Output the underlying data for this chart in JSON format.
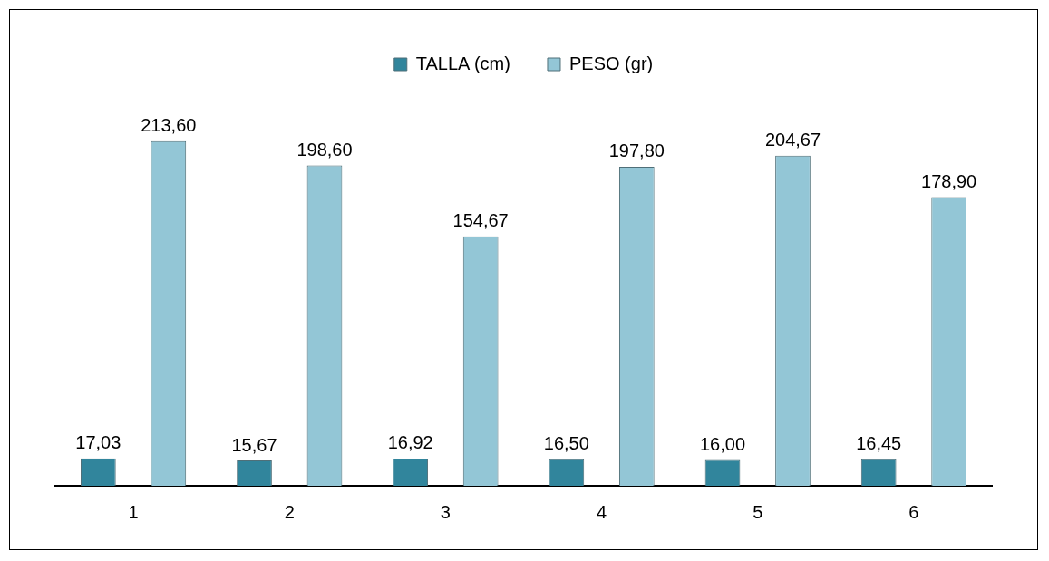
{
  "chart_data": {
    "type": "bar",
    "categories": [
      "1",
      "2",
      "3",
      "4",
      "5",
      "6"
    ],
    "series": [
      {
        "name": "TALLA (cm)",
        "color": "#31859c",
        "values": [
          17.03,
          15.67,
          16.92,
          16.5,
          16.0,
          16.45
        ],
        "value_labels": [
          "17,03",
          "15,67",
          "16,92",
          "16,50",
          "16,00",
          "16,45"
        ]
      },
      {
        "name": "PESO (gr)",
        "color": "#93c6d6",
        "values": [
          213.6,
          198.6,
          154.67,
          197.8,
          204.67,
          178.9
        ],
        "value_labels": [
          "213,60",
          "198,60",
          "154,67",
          "197,80",
          "204,67",
          "178,90"
        ]
      }
    ],
    "legend": "top",
    "grid": false,
    "tick_labels": "x"
  }
}
